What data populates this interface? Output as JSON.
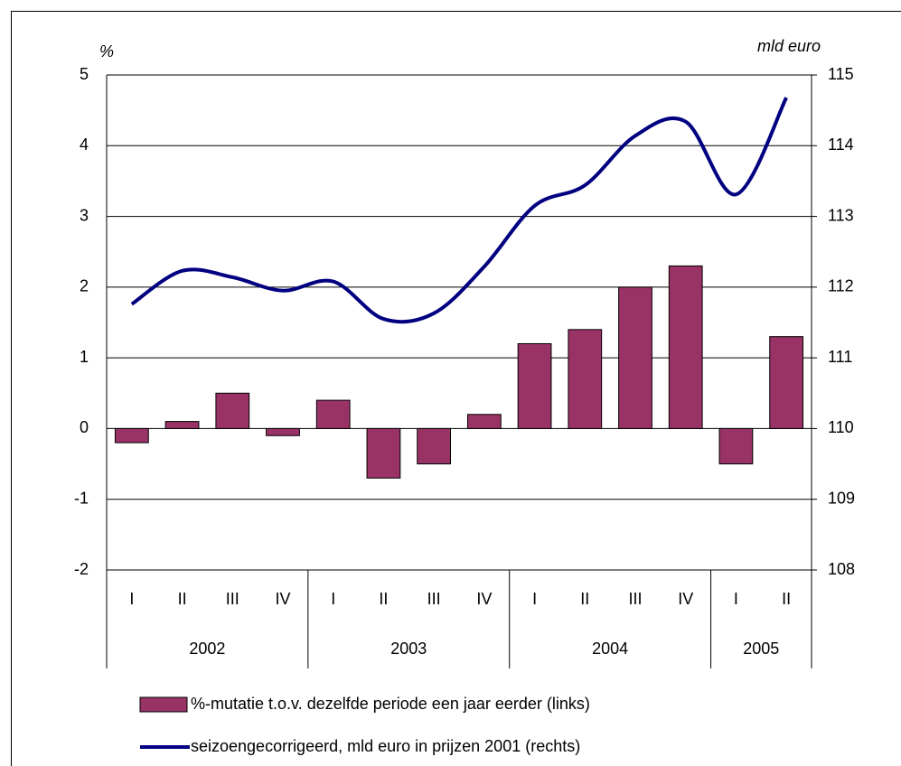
{
  "chart_data": {
    "type": "bar",
    "categories": [
      "I",
      "II",
      "III",
      "IV",
      "I",
      "II",
      "III",
      "IV",
      "I",
      "II",
      "III",
      "IV",
      "I",
      "II"
    ],
    "x_groups": [
      "2002",
      "2003",
      "2004",
      "2005"
    ],
    "ylabel": "%",
    "y2label": "mld euro",
    "ylim": [
      -2,
      5
    ],
    "yticks": [
      -2,
      -1,
      0,
      1,
      2,
      3,
      4,
      5
    ],
    "y2lim": [
      108,
      115
    ],
    "y2ticks": [
      108,
      109,
      110,
      111,
      112,
      113,
      114,
      115
    ],
    "grid": true,
    "legend": "bottom",
    "series": [
      {
        "name": "%-mutatie t.o.v. dezelfde periode een jaar eerder (links)",
        "type": "bar",
        "color": "#993366",
        "values": [
          -0.2,
          0.1,
          0.5,
          -0.1,
          0.4,
          -0.7,
          -0.5,
          0.2,
          1.2,
          1.4,
          2.0,
          2.3,
          -0.5,
          1.3
        ]
      },
      {
        "name": "seizoengecorrigeerd, mld euro in prijzen 2001 (rechts)",
        "type": "line",
        "axis": "y2",
        "color": "#000080",
        "values": [
          111.76,
          112.23,
          112.14,
          111.95,
          112.08,
          111.55,
          111.63,
          112.29,
          113.15,
          113.44,
          114.14,
          114.34,
          113.31,
          114.68
        ]
      }
    ]
  }
}
